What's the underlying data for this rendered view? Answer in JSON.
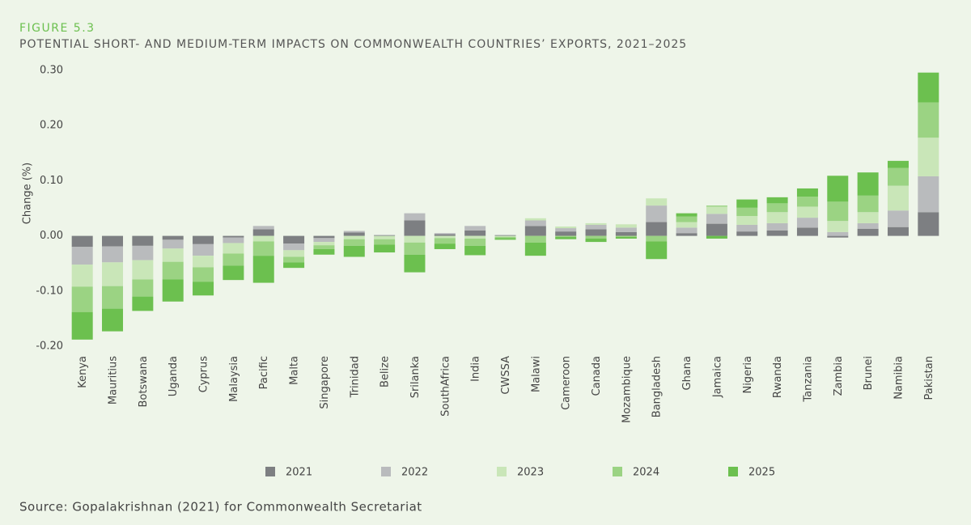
{
  "figure_label": "FIGURE 5.3",
  "source": "Source: Gopalakrishnan (2021) for Commonwealth Secretariat",
  "chart_data": {
    "type": "stacked_bar",
    "title": "POTENTIAL SHORT- AND MEDIUM-TERM IMPACTS ON COMMONWEALTH COUNTRIES’ EXPORTS, 2021–2025",
    "y_label": "Change (%)",
    "categories": [
      "Kenya",
      "Mauritius",
      "Botswana",
      "Uganda",
      "Cyprus",
      "Malaysia",
      "Pacific",
      "Malta",
      "Singapore",
      "Trinidad",
      "Belize",
      "Srilanka",
      "SouthAfrica",
      "India",
      "CWSSA",
      "Malawi",
      "Cameroon",
      "Canada",
      "Mozambique",
      "Bangladesh",
      "Ghana",
      "Jamaica",
      "Nigeria",
      "Rwanda",
      "Tanzania",
      "Zambia",
      "Brunei",
      "Namibia",
      "Pakistan"
    ],
    "series": [
      {
        "name": "2021",
        "color": "#7d7f82",
        "values": [
          -0.02,
          -0.019,
          -0.018,
          -0.007,
          -0.015,
          -0.003,
          0.012,
          -0.014,
          -0.004,
          0.006,
          0.001,
          0.028,
          0.003,
          0.01,
          0.001,
          0.018,
          0.008,
          0.012,
          0.007,
          0.025,
          0.005,
          0.022,
          0.008,
          0.01,
          0.015,
          -0.003,
          0.013,
          0.016,
          0.043
        ]
      },
      {
        "name": "2022",
        "color": "#b9bbbd",
        "values": [
          -0.032,
          -0.029,
          -0.026,
          -0.016,
          -0.021,
          -0.01,
          0.006,
          -0.012,
          -0.007,
          0.003,
          0.001,
          0.013,
          0.002,
          0.008,
          0.001,
          0.01,
          0.006,
          0.008,
          0.008,
          0.03,
          0.01,
          0.018,
          0.012,
          0.013,
          0.018,
          0.007,
          0.01,
          0.03,
          0.065
        ]
      },
      {
        "name": "2023",
        "color": "#c9e6b8",
        "values": [
          -0.04,
          -0.043,
          -0.035,
          -0.024,
          -0.021,
          -0.019,
          -0.01,
          -0.012,
          -0.006,
          -0.006,
          -0.006,
          -0.012,
          -0.004,
          -0.005,
          -0.002,
          0.004,
          0.003,
          0.003,
          0.006,
          0.013,
          0.01,
          0.013,
          0.016,
          0.02,
          0.02,
          0.02,
          0.02,
          0.045,
          0.07
        ]
      },
      {
        "name": "2024",
        "color": "#9bd383",
        "values": [
          -0.046,
          -0.041,
          -0.031,
          -0.032,
          -0.026,
          -0.022,
          -0.026,
          -0.01,
          -0.007,
          -0.012,
          -0.01,
          -0.022,
          -0.01,
          -0.013,
          -0.002,
          -0.012,
          -0.002,
          -0.005,
          -0.002,
          -0.01,
          0.01,
          0.002,
          0.015,
          0.016,
          0.018,
          0.035,
          0.03,
          0.032,
          0.064
        ]
      },
      {
        "name": "2025",
        "color": "#6cc04f",
        "values": [
          -0.05,
          -0.041,
          -0.026,
          -0.04,
          -0.025,
          -0.026,
          -0.049,
          -0.01,
          -0.01,
          -0.02,
          -0.014,
          -0.032,
          -0.01,
          -0.017,
          -0.003,
          -0.024,
          -0.004,
          -0.006,
          -0.003,
          -0.032,
          0.006,
          -0.005,
          0.015,
          0.011,
          0.015,
          0.047,
          0.042,
          0.013,
          0.054
        ]
      }
    ],
    "ylim": [
      -0.2,
      0.3
    ],
    "yticks": [
      {
        "value": -0.2,
        "label": "-0.20"
      },
      {
        "value": -0.1,
        "label": "-0.10"
      },
      {
        "value": 0,
        "label": "0.00"
      },
      {
        "value": 0.1,
        "label": "0.10"
      },
      {
        "value": 0.2,
        "label": "0.20"
      },
      {
        "value": 0.3,
        "label": "0.30"
      }
    ]
  }
}
